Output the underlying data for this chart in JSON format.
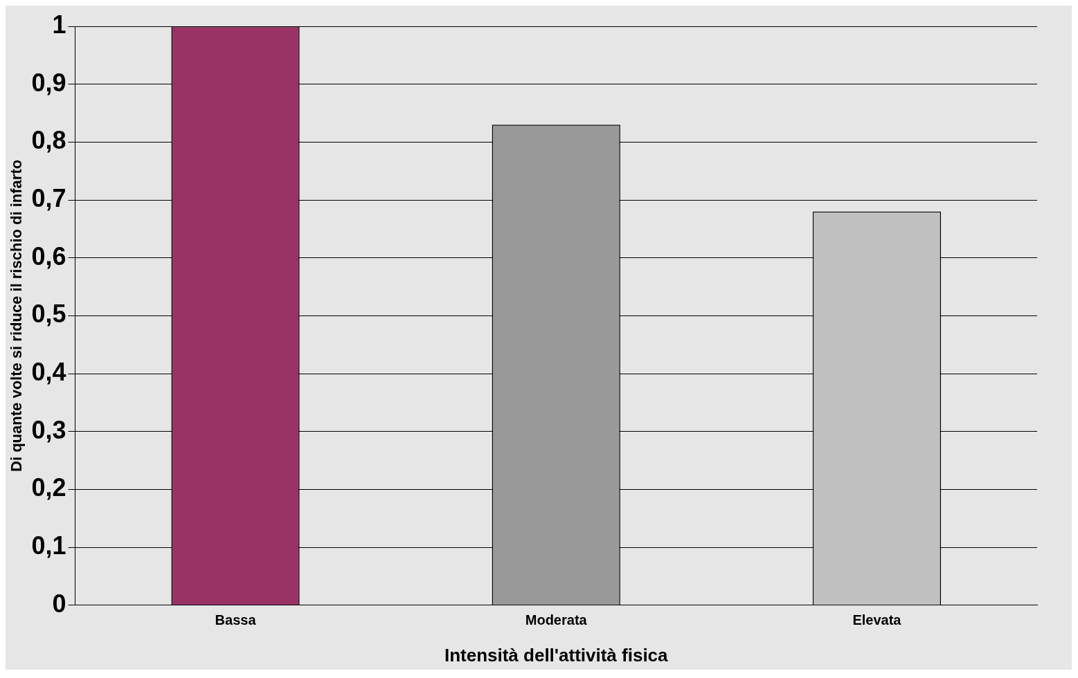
{
  "chart_data": {
    "type": "bar",
    "xlabel": "Intensità dell'attività fisica",
    "ylabel": "Di quante volte si riduce il rischio di infarto",
    "categories": [
      "Bassa",
      "Moderata",
      "Elevata"
    ],
    "values": [
      1,
      0.83,
      0.68
    ],
    "colors": [
      "#993366",
      "#999999",
      "#c0c0c0"
    ],
    "ylim": [
      0,
      1
    ],
    "yticks": [
      0,
      {
        "value": 0.1,
        "label": "0,1"
      },
      {
        "value": 0.2,
        "label": "0,2"
      },
      {
        "value": 0.3,
        "label": "0,3"
      },
      {
        "value": 0.4,
        "label": "0,4"
      },
      {
        "value": 0.5,
        "label": "0,5"
      },
      {
        "value": 0.6,
        "label": "0,6"
      },
      {
        "value": 0.7,
        "label": "0,7"
      },
      {
        "value": 0.8,
        "label": "0,8"
      },
      {
        "value": 0.9,
        "label": "0,9"
      },
      1
    ],
    "grid": "y",
    "legend": false
  }
}
